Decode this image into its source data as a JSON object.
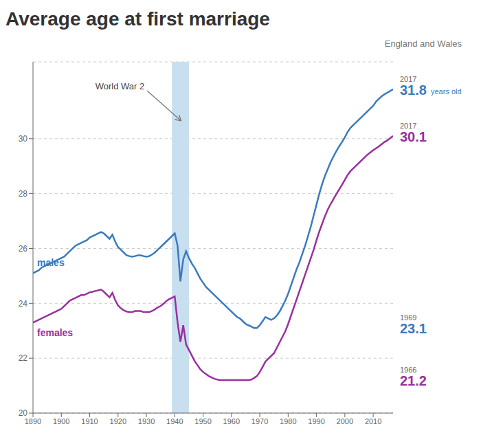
{
  "chart_data": {
    "type": "line",
    "title": "Average age at first marriage",
    "subtitle": "England and Wales",
    "x": [
      1890,
      1891,
      1892,
      1893,
      1894,
      1895,
      1896,
      1897,
      1898,
      1899,
      1900,
      1901,
      1902,
      1903,
      1904,
      1905,
      1906,
      1907,
      1908,
      1909,
      1910,
      1911,
      1912,
      1913,
      1914,
      1915,
      1916,
      1917,
      1918,
      1919,
      1920,
      1921,
      1922,
      1923,
      1924,
      1925,
      1926,
      1927,
      1928,
      1929,
      1930,
      1931,
      1932,
      1933,
      1934,
      1935,
      1936,
      1937,
      1938,
      1939,
      1940,
      1941,
      1942,
      1943,
      1944,
      1945,
      1946,
      1947,
      1948,
      1949,
      1950,
      1951,
      1952,
      1953,
      1954,
      1955,
      1956,
      1957,
      1958,
      1959,
      1960,
      1961,
      1962,
      1963,
      1964,
      1965,
      1966,
      1967,
      1968,
      1969,
      1970,
      1971,
      1972,
      1973,
      1974,
      1975,
      1976,
      1977,
      1978,
      1979,
      1980,
      1981,
      1982,
      1983,
      1984,
      1985,
      1986,
      1987,
      1988,
      1989,
      1990,
      1991,
      1992,
      1993,
      1994,
      1995,
      1996,
      1997,
      1998,
      1999,
      2000,
      2001,
      2002,
      2003,
      2004,
      2005,
      2006,
      2007,
      2008,
      2009,
      2010,
      2011,
      2012,
      2013,
      2014,
      2015,
      2016,
      2017
    ],
    "series": [
      {
        "name": "males",
        "color": "#3a7abf",
        "values": [
          25.1,
          25.15,
          25.2,
          25.3,
          25.35,
          25.4,
          25.45,
          25.5,
          25.55,
          25.6,
          25.65,
          25.7,
          25.8,
          25.9,
          26.0,
          26.1,
          26.15,
          26.2,
          26.25,
          26.3,
          26.4,
          26.45,
          26.5,
          26.55,
          26.6,
          26.55,
          26.45,
          26.35,
          26.5,
          26.25,
          26.05,
          25.95,
          25.85,
          25.75,
          25.72,
          25.7,
          25.72,
          25.75,
          25.75,
          25.72,
          25.7,
          25.72,
          25.78,
          25.85,
          25.95,
          26.05,
          26.15,
          26.25,
          26.35,
          26.45,
          26.55,
          26.1,
          24.8,
          25.6,
          25.9,
          25.65,
          25.45,
          25.3,
          25.1,
          24.9,
          24.75,
          24.6,
          24.5,
          24.4,
          24.3,
          24.2,
          24.1,
          24.0,
          23.9,
          23.8,
          23.7,
          23.6,
          23.5,
          23.45,
          23.35,
          23.25,
          23.2,
          23.15,
          23.1,
          23.1,
          23.2,
          23.35,
          23.5,
          23.45,
          23.4,
          23.45,
          23.55,
          23.7,
          23.9,
          24.1,
          24.35,
          24.65,
          24.95,
          25.25,
          25.5,
          25.8,
          26.1,
          26.45,
          26.8,
          27.2,
          27.6,
          28.0,
          28.35,
          28.65,
          28.9,
          29.15,
          29.35,
          29.55,
          29.72,
          29.88,
          30.05,
          30.25,
          30.4,
          30.5,
          30.6,
          30.7,
          30.8,
          30.9,
          31.0,
          31.1,
          31.2,
          31.35,
          31.45,
          31.55,
          31.62,
          31.68,
          31.74,
          31.8
        ]
      },
      {
        "name": "females",
        "color": "#9b2fa0",
        "values": [
          23.3,
          23.35,
          23.4,
          23.45,
          23.5,
          23.55,
          23.6,
          23.65,
          23.7,
          23.75,
          23.8,
          23.9,
          24.0,
          24.1,
          24.15,
          24.2,
          24.25,
          24.3,
          24.3,
          24.35,
          24.4,
          24.42,
          24.45,
          24.47,
          24.5,
          24.42,
          24.32,
          24.22,
          24.38,
          24.12,
          23.92,
          23.82,
          23.75,
          23.7,
          23.68,
          23.68,
          23.72,
          23.72,
          23.72,
          23.68,
          23.68,
          23.68,
          23.72,
          23.78,
          23.85,
          23.9,
          23.98,
          24.08,
          24.15,
          24.2,
          24.25,
          23.3,
          22.6,
          23.2,
          22.5,
          22.3,
          22.1,
          21.9,
          21.75,
          21.6,
          21.5,
          21.42,
          21.35,
          21.3,
          21.25,
          21.22,
          21.2,
          21.2,
          21.2,
          21.2,
          21.2,
          21.2,
          21.2,
          21.2,
          21.2,
          21.2,
          21.2,
          21.22,
          21.28,
          21.35,
          21.5,
          21.68,
          21.88,
          21.98,
          22.08,
          22.18,
          22.38,
          22.58,
          22.78,
          22.98,
          23.25,
          23.55,
          23.85,
          24.15,
          24.45,
          24.75,
          25.05,
          25.35,
          25.65,
          25.95,
          26.3,
          26.62,
          26.9,
          27.18,
          27.42,
          27.62,
          27.8,
          27.98,
          28.15,
          28.32,
          28.5,
          28.68,
          28.82,
          28.92,
          29.02,
          29.12,
          29.22,
          29.32,
          29.42,
          29.5,
          29.58,
          29.65,
          29.72,
          29.8,
          29.88,
          29.94,
          30.02,
          30.1
        ]
      }
    ],
    "xlim": [
      1890,
      2017
    ],
    "xticks": [
      1890,
      1900,
      1910,
      1920,
      1930,
      1940,
      1950,
      1960,
      1970,
      1980,
      1990,
      2000,
      2010
    ],
    "ylim": [
      20,
      32.8
    ],
    "yticks": [
      20,
      22,
      24,
      26,
      28,
      30
    ],
    "grid": true,
    "shaded_region": {
      "x": [
        1939,
        1945
      ],
      "color": "#c8dff0",
      "label": "World War 2"
    },
    "point_labels": [
      {
        "series": "males",
        "x": 2017,
        "note": "years old"
      },
      {
        "series": "females",
        "x": 2017
      },
      {
        "series": "males",
        "x": 1969
      },
      {
        "series": "females",
        "x": 1966
      }
    ]
  }
}
